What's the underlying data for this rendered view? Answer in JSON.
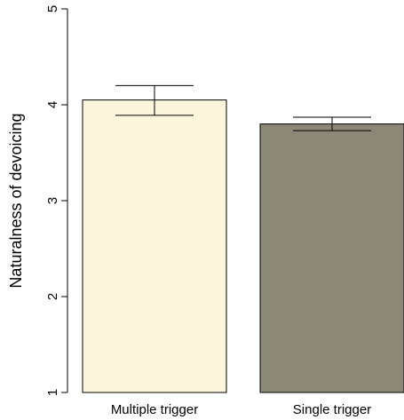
{
  "chart_data": {
    "type": "bar",
    "title": "",
    "xlabel": "",
    "ylabel": "Naturalness of devoicing",
    "ylim": [
      1,
      5
    ],
    "yticks": [
      1,
      2,
      3,
      4,
      5
    ],
    "grid": false,
    "categories": [
      "Multiple trigger",
      "Single trigger"
    ],
    "values": [
      4.05,
      3.8
    ],
    "error_upper": [
      4.2,
      3.87
    ],
    "error_lower": [
      3.89,
      3.73
    ],
    "colors": [
      "#fcf7dc",
      "#8b8878"
    ],
    "edge_color": "#000000"
  }
}
